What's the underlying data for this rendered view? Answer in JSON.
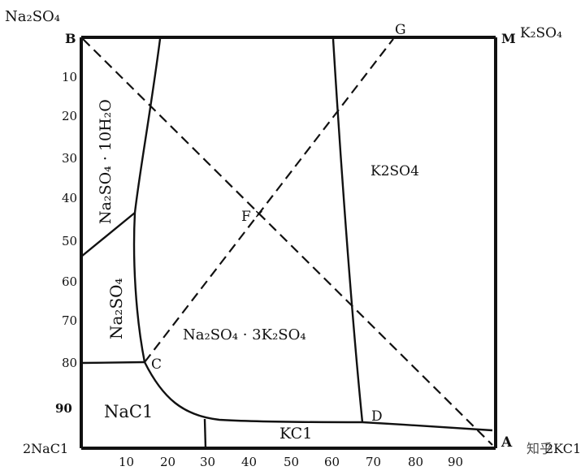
{
  "corners": {
    "top_left_label": "Na₂SO₄",
    "top_right_label": "K₂SO₄",
    "bottom_left_label": "2NaC1",
    "bottom_right_label": "2KC1"
  },
  "points": {
    "B": "B",
    "G": "G",
    "M": "M",
    "F": "F",
    "C": "C",
    "D": "D",
    "A": "A"
  },
  "y_ticks": [
    "10",
    "20",
    "30",
    "40",
    "50",
    "60",
    "70",
    "80",
    "90"
  ],
  "x_ticks": [
    "10",
    "20",
    "30",
    "40",
    "50",
    "60",
    "70",
    "80",
    "90"
  ],
  "regions": {
    "k2so4": "K2SO4",
    "glaserite": "Na₂SO₄ · 3K₂SO₄",
    "na2so4": "Na₂SO₄",
    "decahydrate": "Na₂SO₄ · 10H₂O",
    "nacl": "NaC1",
    "kcl": "KC1"
  },
  "watermark": "知乎"
}
